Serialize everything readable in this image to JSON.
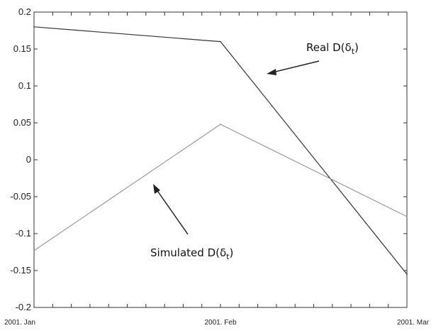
{
  "chart_data": {
    "type": "line",
    "x": [
      "2001. Jan",
      "2001. Feb",
      "2001. Mar"
    ],
    "series": [
      {
        "name": "Real D(δt)",
        "values": [
          0.18,
          0.16,
          -0.155
        ],
        "color": "#333333"
      },
      {
        "name": "Simulated D(δt)",
        "values": [
          -0.123,
          0.048,
          -0.077
        ],
        "color": "#888888"
      }
    ],
    "ylim": [
      -0.2,
      0.2
    ],
    "yticks": [
      "0.2",
      "0.15",
      "0.1",
      "0.05",
      "0",
      "-0.05",
      "-0.1",
      "-0.15",
      "-0.2"
    ],
    "xticks": [
      "2001. Jan",
      "2001. Feb",
      "2001. Mar"
    ],
    "grid": false,
    "annotations": [
      {
        "label_main": "Real D(δ",
        "label_sub": "t",
        "label_close": ")"
      },
      {
        "label_main": "Simulated D(δ",
        "label_sub": "t",
        "label_close": ")"
      }
    ]
  }
}
